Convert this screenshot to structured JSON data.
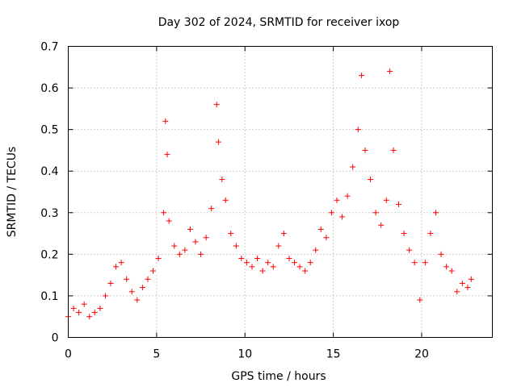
{
  "chart_data": {
    "type": "scatter",
    "title": "Day 302 of 2024, SRMTID for receiver ixop",
    "xlabel": "GPS time / hours",
    "ylabel": "SRMTID / TECUs",
    "xlim": [
      0,
      24
    ],
    "ylim": [
      0,
      0.7
    ],
    "xticks": [
      0,
      5,
      10,
      15,
      20
    ],
    "xtick_labels": [
      "0",
      "5",
      "10",
      "15",
      "20"
    ],
    "yticks": [
      0,
      0.1,
      0.2,
      0.3,
      0.4,
      0.5,
      0.6,
      0.7
    ],
    "ytick_labels": [
      "0",
      "0.1",
      "0.2",
      "0.3",
      "0.4",
      "0.5",
      "0.6",
      "0.7"
    ],
    "grid": true,
    "marker": "plus",
    "color": "#ff0000",
    "series": [
      {
        "name": "SRMTID",
        "x": [
          0.0,
          0.3,
          0.6,
          0.9,
          1.2,
          1.5,
          1.8,
          2.1,
          2.4,
          2.7,
          3.0,
          3.3,
          3.6,
          3.9,
          4.2,
          4.5,
          4.8,
          5.1,
          5.4,
          5.5,
          5.6,
          5.7,
          6.0,
          6.3,
          6.6,
          6.9,
          7.2,
          7.5,
          7.8,
          8.1,
          8.4,
          8.5,
          8.7,
          8.9,
          9.2,
          9.5,
          9.8,
          10.1,
          10.4,
          10.7,
          11.0,
          11.3,
          11.6,
          11.9,
          12.2,
          12.5,
          12.8,
          13.1,
          13.4,
          13.7,
          14.0,
          14.3,
          14.6,
          14.9,
          15.2,
          15.5,
          15.8,
          16.1,
          16.4,
          16.6,
          16.8,
          17.1,
          17.4,
          17.7,
          18.0,
          18.2,
          18.4,
          18.7,
          19.0,
          19.3,
          19.6,
          19.9,
          20.2,
          20.5,
          20.8,
          21.1,
          21.4,
          21.7,
          22.0,
          22.3,
          22.6,
          22.8
        ],
        "y": [
          0.05,
          0.07,
          0.06,
          0.08,
          0.05,
          0.06,
          0.07,
          0.1,
          0.13,
          0.17,
          0.18,
          0.14,
          0.11,
          0.09,
          0.12,
          0.14,
          0.16,
          0.19,
          0.3,
          0.52,
          0.44,
          0.28,
          0.22,
          0.2,
          0.21,
          0.26,
          0.23,
          0.2,
          0.24,
          0.31,
          0.56,
          0.47,
          0.38,
          0.33,
          0.25,
          0.22,
          0.19,
          0.18,
          0.17,
          0.19,
          0.16,
          0.18,
          0.17,
          0.22,
          0.25,
          0.19,
          0.18,
          0.17,
          0.16,
          0.18,
          0.21,
          0.26,
          0.24,
          0.3,
          0.33,
          0.29,
          0.34,
          0.41,
          0.5,
          0.63,
          0.45,
          0.38,
          0.3,
          0.27,
          0.33,
          0.64,
          0.45,
          0.32,
          0.25,
          0.21,
          0.18,
          0.09,
          0.18,
          0.25,
          0.3,
          0.2,
          0.17,
          0.16,
          0.11,
          0.13,
          0.12,
          0.14
        ]
      }
    ]
  }
}
